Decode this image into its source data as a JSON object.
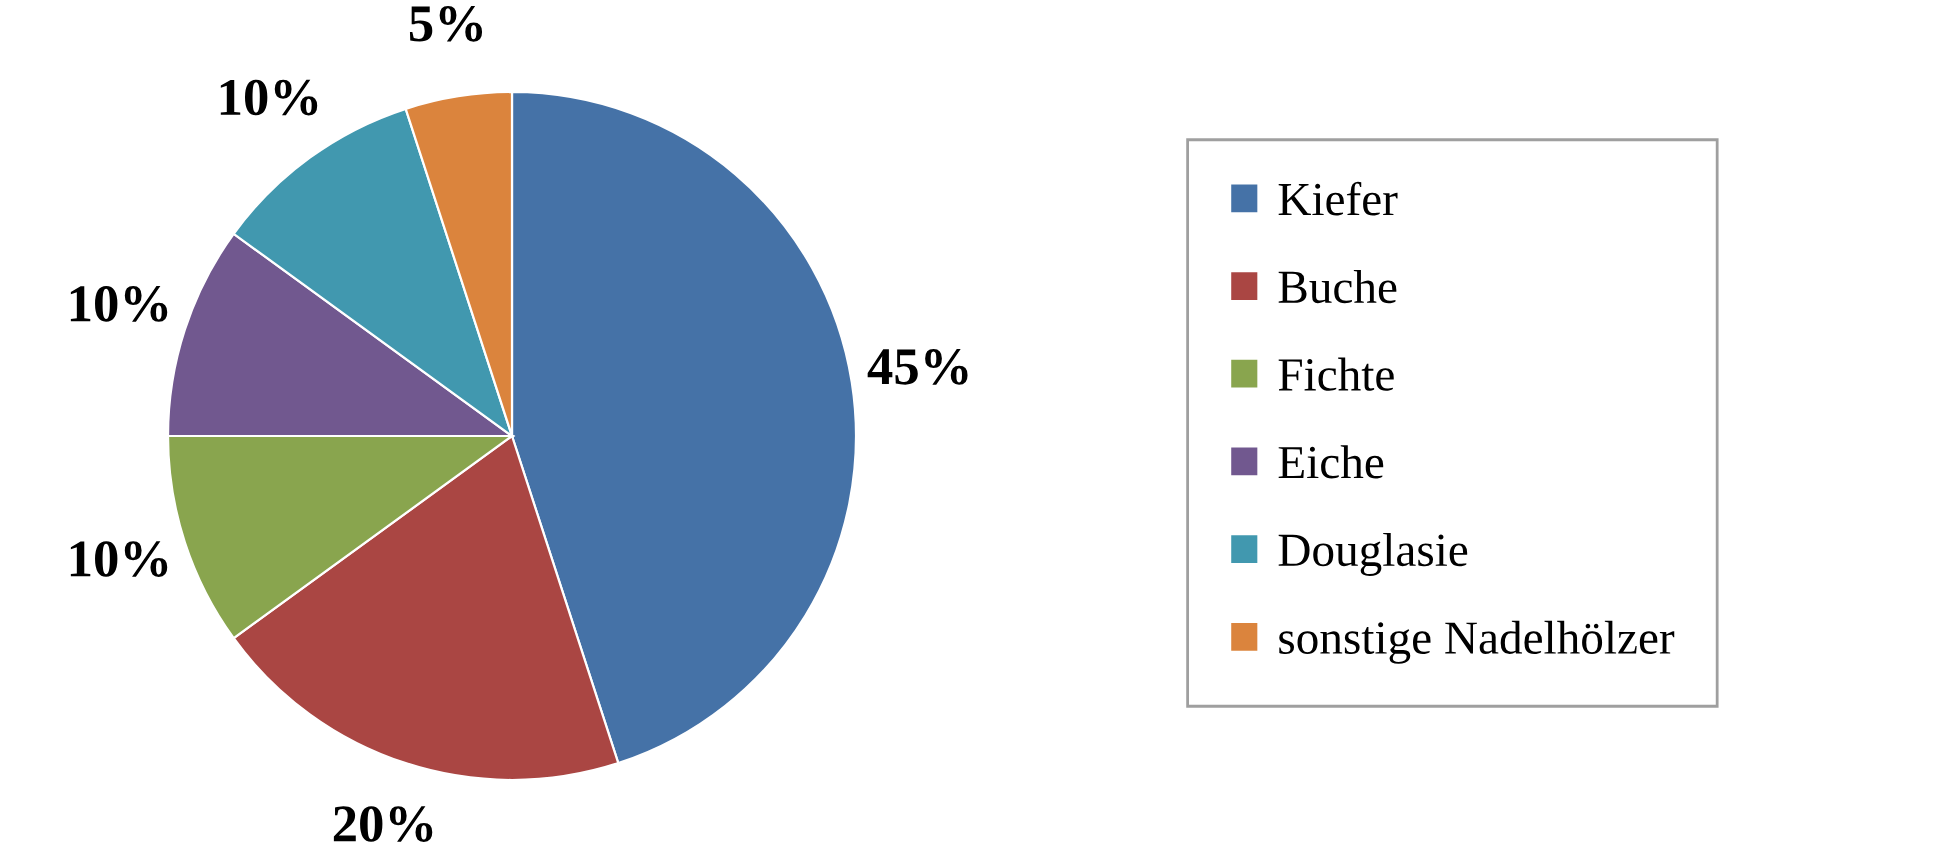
{
  "chart_data": {
    "type": "pie",
    "categories": [
      "Kiefer",
      "Buche",
      "Fichte",
      "Eiche",
      "Douglasie",
      "sonstige Nadelhölzer"
    ],
    "values": [
      45,
      20,
      10,
      10,
      10,
      5
    ],
    "colors": [
      "#4572a7",
      "#aa4643",
      "#89a54e",
      "#71588f",
      "#4198af",
      "#db843d"
    ],
    "value_labels": [
      "45%",
      "20%",
      "10%",
      "10%",
      "10%",
      "5%"
    ],
    "legend": "right"
  }
}
